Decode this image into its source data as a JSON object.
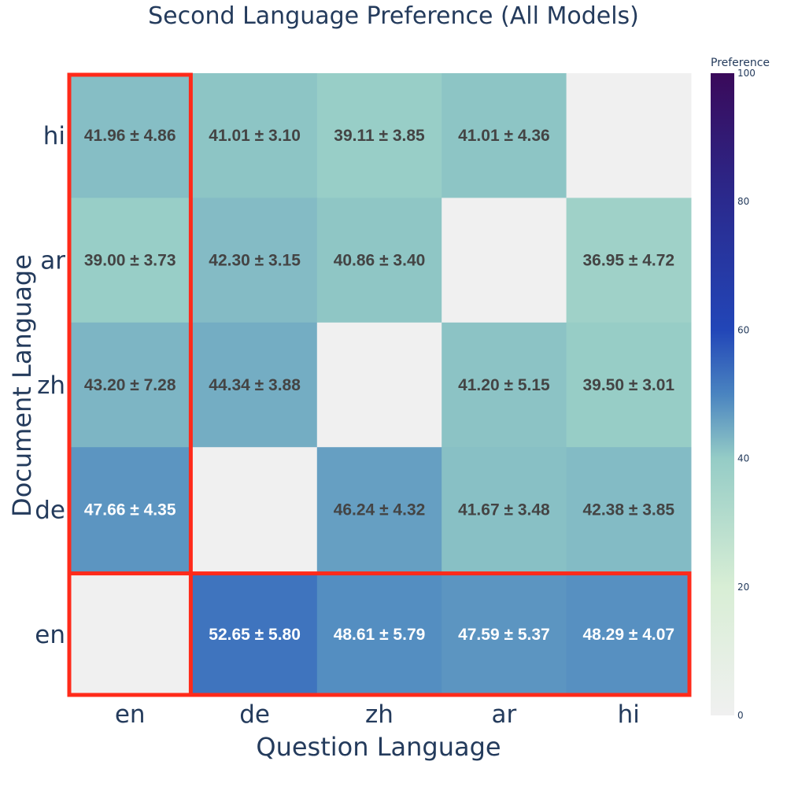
{
  "chart_data": {
    "type": "heatmap",
    "title": "Second Language Preference (All Models)",
    "xlabel": "Question Language",
    "ylabel": "Document Language",
    "x_categories": [
      "en",
      "de",
      "zh",
      "ar",
      "hi"
    ],
    "y_categories": [
      "hi",
      "ar",
      "zh",
      "de",
      "en"
    ],
    "values": [
      [
        41.96,
        41.01,
        39.11,
        41.01,
        null
      ],
      [
        39.0,
        42.3,
        40.86,
        null,
        36.95
      ],
      [
        43.2,
        44.34,
        null,
        41.2,
        39.5
      ],
      [
        47.66,
        null,
        46.24,
        41.67,
        42.38
      ],
      [
        null,
        52.65,
        48.61,
        47.59,
        48.29
      ]
    ],
    "labels": [
      [
        "41.96 ± 4.86",
        "41.01 ± 3.10",
        "39.11 ± 3.85",
        "41.01 ± 4.36",
        ""
      ],
      [
        "39.00 ± 3.73",
        "42.30 ± 3.15",
        "40.86 ± 3.40",
        "",
        "36.95 ± 4.72"
      ],
      [
        "43.20 ± 7.28",
        "44.34 ± 3.88",
        "",
        "41.20 ± 5.15",
        "39.50 ± 3.01"
      ],
      [
        "47.66 ± 4.35",
        "",
        "46.24 ± 4.32",
        "41.67 ± 3.48",
        "42.38 ± 3.85"
      ],
      [
        "",
        "52.65 ± 5.80",
        "48.61 ± 5.79",
        "47.59 ± 5.37",
        "48.29 ± 4.07"
      ]
    ],
    "colorscale": {
      "title": "Preference",
      "range": [
        0,
        100
      ],
      "ticks": [
        0,
        20,
        40,
        60,
        80,
        100
      ],
      "stops": [
        [
          0.0,
          "#f0f0f0"
        ],
        [
          0.2,
          "#d8eed5"
        ],
        [
          0.4,
          "#95ccc6"
        ],
        [
          0.5,
          "#4a84c0"
        ],
        [
          0.6,
          "#2246b8"
        ],
        [
          0.8,
          "#2a2a8e"
        ],
        [
          1.0,
          "#3a0a5a"
        ]
      ]
    },
    "missing_color": "#f0f0f0",
    "highlights": [
      {
        "column": "en",
        "color": "#ff2a1a"
      },
      {
        "row": "en",
        "color": "#ff2a1a"
      }
    ]
  }
}
